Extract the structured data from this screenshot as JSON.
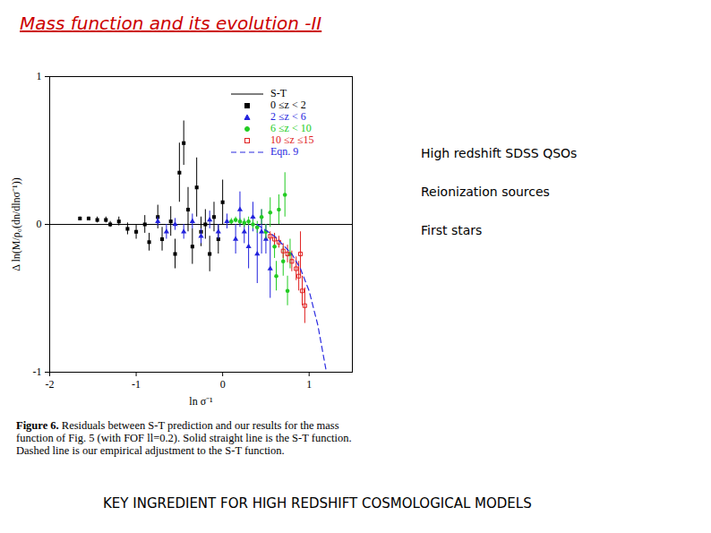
{
  "slide": {
    "title": "Mass function and its evolution -II",
    "bullets": [
      "High redshift SDSS QSOs",
      "Reionization sources",
      "First stars"
    ],
    "caption_label": "Figure 6.",
    "caption": "Residuals between S-T prediction and our results for the mass function of Fig. 5 (with FOF ll=0.2). Solid straight line is the S-T function. Dashed line is our empirical adjustment to the S-T function.",
    "footer": "KEY INGREDIENT FOR HIGH REDSHIFT COSMOLOGICAL MODELS"
  },
  "chart_data": {
    "type": "scatter",
    "x_label": "ln σ⁻¹",
    "y_label": "Δ ln(M/ρ₀(dn/dlnσ⁻¹))",
    "xlim": [
      -2,
      1.5
    ],
    "ylim": [
      -1,
      1
    ],
    "xticks": [
      -2,
      -1,
      0,
      1
    ],
    "yticks": [
      -1,
      0,
      1
    ],
    "legend": "top-right",
    "series": [
      {
        "name": "S-T",
        "type": "line",
        "line_style": "solid",
        "color": "#000000",
        "x": [
          -2,
          1.5
        ],
        "values": [
          0,
          0
        ]
      },
      {
        "name": "0 ≤z < 2",
        "type": "scatter",
        "marker": "square",
        "color": "#000000",
        "x": [
          -1.65,
          -1.55,
          -1.45,
          -1.35,
          -1.3,
          -1.2,
          -1.1,
          -1.0,
          -0.9,
          -0.85,
          -0.75,
          -0.7,
          -0.6,
          -0.55,
          -0.5,
          -0.45,
          -0.4,
          -0.35,
          -0.3,
          -0.25,
          -0.2,
          -0.15,
          -0.1,
          -0.05,
          0.0
        ],
        "values": [
          0.04,
          0.04,
          0.03,
          0.03,
          0.0,
          0.02,
          -0.03,
          -0.05,
          0.0,
          -0.12,
          0.05,
          -0.1,
          0.02,
          -0.2,
          0.35,
          0.55,
          0.1,
          -0.15,
          0.25,
          -0.05,
          0.0,
          -0.2,
          0.05,
          -0.1,
          0.15
        ],
        "errors": [
          0.01,
          0.01,
          0.02,
          0.02,
          0.02,
          0.03,
          0.04,
          0.05,
          0.06,
          0.06,
          0.08,
          0.08,
          0.1,
          0.1,
          0.2,
          0.15,
          0.15,
          0.12,
          0.2,
          0.1,
          0.1,
          0.12,
          0.1,
          0.1,
          0.15
        ]
      },
      {
        "name": "2 ≤z < 6",
        "type": "scatter",
        "marker": "triangle",
        "color": "#2222dd",
        "x": [
          -0.75,
          -0.65,
          -0.55,
          -0.45,
          -0.35,
          -0.25,
          -0.15,
          -0.05,
          0.05,
          0.15,
          0.2,
          0.25,
          0.3,
          0.35,
          0.4,
          0.45,
          0.5,
          0.55
        ],
        "values": [
          0.02,
          -0.05,
          0.0,
          -0.05,
          0.02,
          -0.08,
          0.03,
          -0.05,
          0.02,
          -0.1,
          0.1,
          -0.05,
          -0.15,
          0.05,
          -0.2,
          -0.05,
          -0.1,
          -0.3
        ],
        "errors": [
          0.03,
          0.05,
          0.04,
          0.05,
          0.05,
          0.05,
          0.06,
          0.05,
          0.05,
          0.1,
          0.12,
          0.08,
          0.15,
          0.1,
          0.2,
          0.15,
          0.1,
          0.2
        ]
      },
      {
        "name": "6 ≤z < 10",
        "type": "scatter",
        "marker": "circle",
        "color": "#22cc22",
        "x": [
          0.1,
          0.15,
          0.2,
          0.25,
          0.3,
          0.35,
          0.4,
          0.45,
          0.5,
          0.55,
          0.6,
          0.62,
          0.65,
          0.7,
          0.72,
          0.75,
          0.78
        ],
        "values": [
          0.02,
          0.03,
          0.02,
          0.01,
          0.02,
          0.0,
          -0.02,
          0.05,
          -0.05,
          0.08,
          -0.15,
          -0.35,
          0.1,
          -0.25,
          0.2,
          -0.45,
          -0.2
        ],
        "errors": [
          0.02,
          0.02,
          0.02,
          0.03,
          0.03,
          0.03,
          0.04,
          0.05,
          0.05,
          0.1,
          0.08,
          0.1,
          0.1,
          0.1,
          0.15,
          0.1,
          0.1
        ]
      },
      {
        "name": "10 ≤z ≤15",
        "type": "scatter",
        "marker": "open square",
        "color": "#e02020",
        "x": [
          0.55,
          0.6,
          0.65,
          0.7,
          0.75,
          0.8,
          0.85,
          0.88,
          0.9,
          0.92,
          0.95
        ],
        "values": [
          -0.08,
          -0.1,
          -0.12,
          -0.18,
          -0.2,
          -0.25,
          -0.3,
          -0.35,
          -0.2,
          -0.45,
          -0.55
        ],
        "errors": [
          0.03,
          0.04,
          0.04,
          0.05,
          0.06,
          0.07,
          0.08,
          0.1,
          0.15,
          0.1,
          0.12
        ]
      },
      {
        "name": "Eqn. 9",
        "type": "line",
        "line_style": "dashed",
        "color": "#2a2ae0",
        "x": [
          0.4,
          0.6,
          0.8,
          0.9,
          1.0,
          1.1,
          1.2
        ],
        "values": [
          0,
          -0.08,
          -0.2,
          -0.3,
          -0.45,
          -0.68,
          -1.0
        ]
      }
    ]
  }
}
